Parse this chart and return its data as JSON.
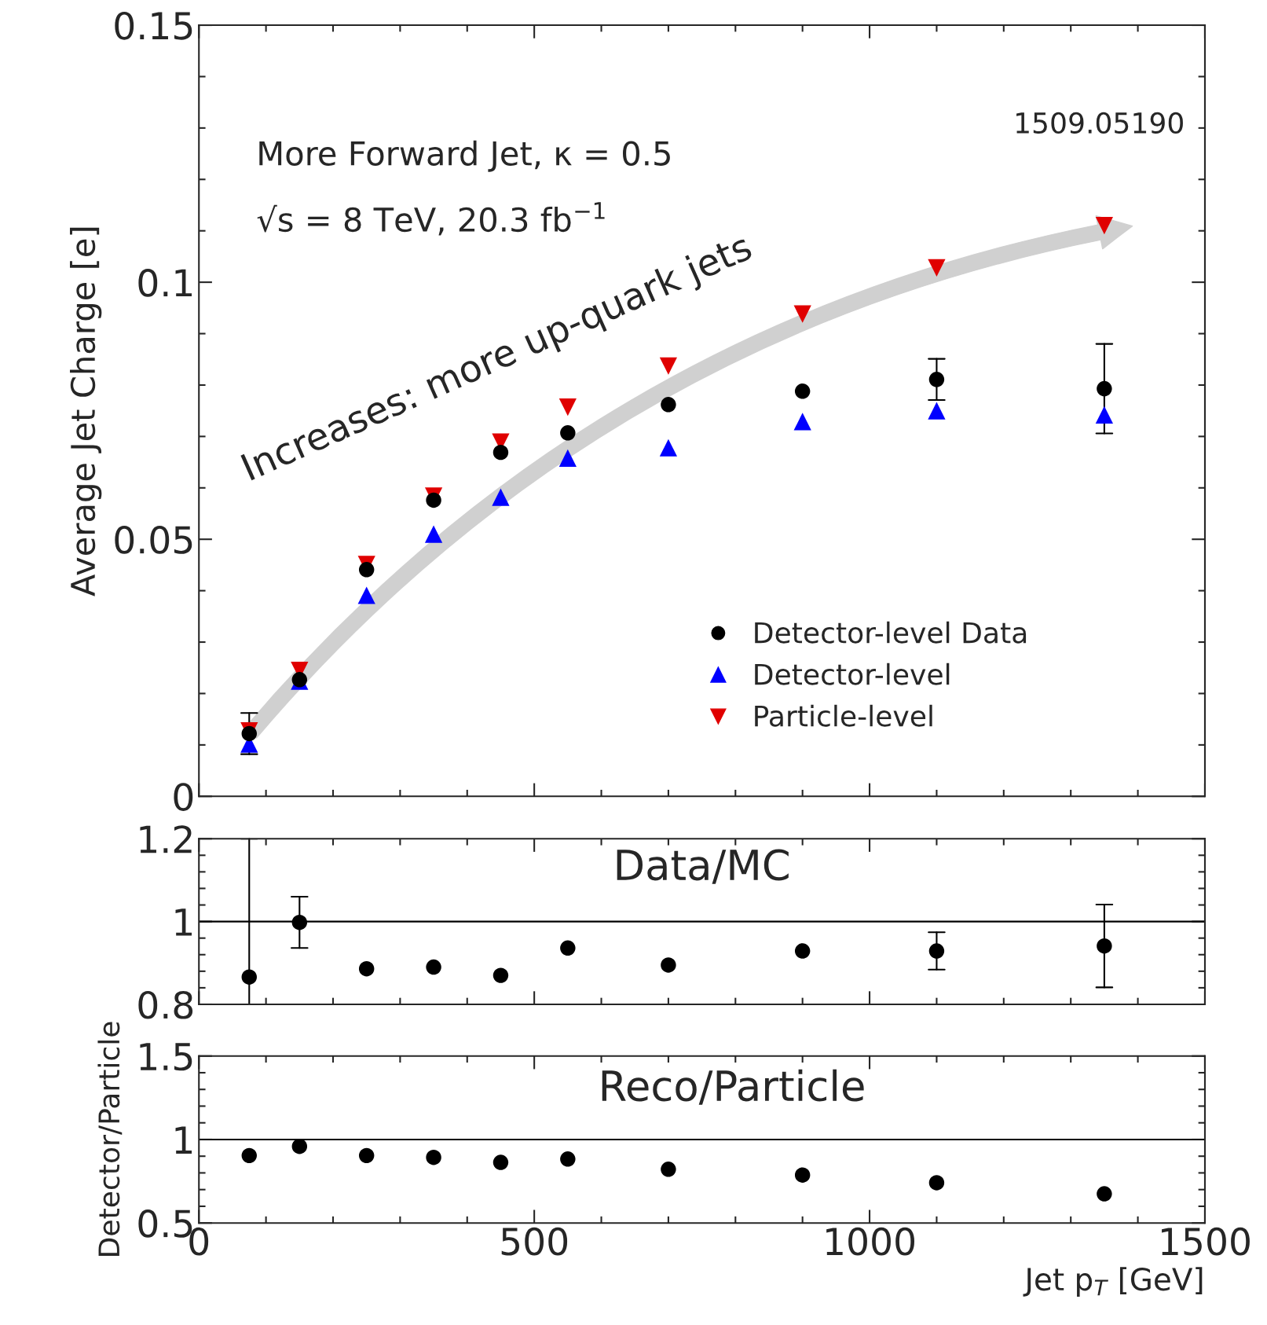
{
  "chart_data": [
    {
      "type": "scatter",
      "ylabel": "Average Jet Charge [e]",
      "x": [
        75,
        150,
        250,
        350,
        450,
        550,
        700,
        900,
        1100,
        1350
      ],
      "xlim": [
        0,
        1500
      ],
      "xticks": [
        0,
        500,
        1000,
        1500
      ],
      "ylim": [
        0,
        0.15
      ],
      "yticks": [
        0,
        0.05,
        0.1,
        0.15
      ],
      "tick_labels": "y",
      "legend": "bottom right",
      "grid": false,
      "annotations": [
        "More Forward Jet, κ = 0.5",
        "√s = 8 TeV, 20.3 fb$^{−1}$",
        "1509.05190",
        "Increases: more up-quark jets"
      ],
      "series": [
        {
          "name": "Detector-level Data",
          "color": "#000000",
          "marker": "circle",
          "values": [
            0.0122,
            0.0227,
            0.0441,
            0.0576,
            0.0669,
            0.0707,
            0.0762,
            0.0788,
            0.0811,
            0.0793
          ],
          "errors": [
            0.004,
            null,
            null,
            null,
            null,
            null,
            null,
            null,
            0.004,
            0.0087
          ]
        },
        {
          "name": "Detector-level",
          "color": "#0000ff",
          "marker": "triangle",
          "values": [
            0.0102,
            0.0224,
            0.0391,
            0.051,
            0.0582,
            0.0658,
            0.0678,
            0.0729,
            0.075,
            0.0742
          ]
        },
        {
          "name": "Particle-level",
          "color": "#e00000",
          "marker": "triangle_down",
          "values": [
            0.0127,
            0.0245,
            0.0451,
            0.0584,
            0.0689,
            0.0757,
            0.0837,
            0.0938,
            0.1028,
            0.111
          ]
        }
      ]
    },
    {
      "type": "scatter",
      "x": [
        75,
        150,
        250,
        350,
        450,
        550,
        700,
        900,
        1100,
        1350
      ],
      "xlim": [
        0,
        1500
      ],
      "xticks": [
        0,
        500,
        1000,
        1500
      ],
      "ylim": [
        0.8,
        1.2
      ],
      "yticks": [
        0.8,
        1,
        1.2
      ],
      "tick_labels": "y",
      "grid": false,
      "annotations": [
        "Data/MC"
      ],
      "ref_lines": [
        {
          "axis": "y",
          "value": 1
        }
      ],
      "series": [
        {
          "color": "#000000",
          "marker": "circle",
          "values": [
            0.866,
            0.998,
            0.886,
            0.89,
            0.87,
            0.936,
            0.895,
            0.929,
            0.929,
            0.941
          ],
          "errors": [
            [
              0.8,
              1.2
            ],
            0.062,
            null,
            null,
            null,
            null,
            null,
            null,
            0.045,
            0.1
          ]
        }
      ]
    },
    {
      "type": "scatter",
      "ylabel": "Detector/Particle",
      "xlabel": "Jet p$_{T}$ [GeV]",
      "x": [
        75,
        150,
        250,
        350,
        450,
        550,
        700,
        900,
        1100,
        1350
      ],
      "xlim": [
        0,
        1500
      ],
      "xticks": [
        0,
        500,
        1000,
        1500
      ],
      "ylim": [
        0.5,
        1.5
      ],
      "yticks": [
        0.5,
        1,
        1.5
      ],
      "grid": false,
      "annotations": [
        "Reco/Particle"
      ],
      "ref_lines": [
        {
          "axis": "y",
          "value": 1
        }
      ],
      "series": [
        {
          "color": "#000000",
          "marker": "circle",
          "values": [
            0.904,
            0.959,
            0.904,
            0.893,
            0.863,
            0.883,
            0.822,
            0.787,
            0.741,
            0.675
          ]
        }
      ]
    }
  ]
}
